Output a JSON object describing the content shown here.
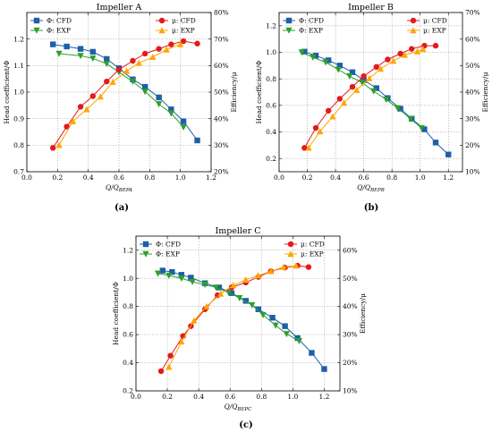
{
  "chart_data": [
    {
      "type": "line",
      "title": "Impeller A",
      "caption": "(a)",
      "xlabel": "Q/Q_BEPA",
      "xlabel_main": "Q/Q",
      "xlabel_sub": "BEPA",
      "ylabel_left": "Head coefficient/Φ",
      "ylabel_right": "Efficiency/μ",
      "xlim": [
        0.0,
        1.2
      ],
      "ylim_left": [
        0.7,
        1.3
      ],
      "ylim_right": [
        20,
        80
      ],
      "xticks": [
        "0.0",
        "0.2",
        "0.4",
        "0.6",
        "0.8",
        "1.0",
        "1.2"
      ],
      "yticks_left": [
        "0.7",
        "0.8",
        "0.9",
        "1.0",
        "1.1",
        "1.2"
      ],
      "yticks_right": [
        "20%",
        "30%",
        "40%",
        "50%",
        "60%",
        "70%",
        "80%"
      ],
      "grid": true,
      "series": [
        {
          "name": "Φ: CFD",
          "axis": "left",
          "color": "#1f5fa8",
          "marker": "square",
          "x": [
            0.17,
            0.26,
            0.35,
            0.43,
            0.52,
            0.6,
            0.69,
            0.77,
            0.86,
            0.94,
            1.02,
            1.11
          ],
          "y": [
            1.18,
            1.172,
            1.163,
            1.152,
            1.125,
            1.09,
            1.048,
            1.02,
            0.98,
            0.935,
            0.89,
            0.818
          ]
        },
        {
          "name": "Φ: EXP",
          "axis": "left",
          "color": "#2ca02c",
          "marker": "triangle-down",
          "x": [
            0.21,
            0.35,
            0.43,
            0.52,
            0.6,
            0.69,
            0.77,
            0.86,
            0.94,
            1.02
          ],
          "y": [
            1.145,
            1.137,
            1.127,
            1.107,
            1.075,
            1.04,
            1.002,
            0.955,
            0.92,
            0.868
          ]
        },
        {
          "name": "μ: CFD",
          "axis": "right",
          "color": "#e31a1c",
          "marker": "circle",
          "x": [
            0.17,
            0.26,
            0.35,
            0.43,
            0.52,
            0.6,
            0.69,
            0.77,
            0.86,
            0.94,
            1.02,
            1.11
          ],
          "y": [
            29,
            37,
            44.5,
            48.5,
            54,
            58.5,
            61.8,
            64.5,
            66.3,
            68,
            69.2,
            68.3
          ]
        },
        {
          "name": "μ: EXP",
          "axis": "right",
          "color": "#ffa500",
          "marker": "triangle-up",
          "x": [
            0.21,
            0.3,
            0.39,
            0.48,
            0.56,
            0.65,
            0.73,
            0.82,
            0.91,
            1.0
          ],
          "y": [
            30,
            39,
            43.5,
            48.3,
            53.8,
            58,
            61,
            63.2,
            66,
            68
          ]
        }
      ]
    },
    {
      "type": "line",
      "title": "Impeller B",
      "caption": "(b)",
      "xlabel": "Q/Q_BEPB",
      "xlabel_main": "Q/Q",
      "xlabel_sub": "BEPB",
      "ylabel_left": "Head coefficient/Φ",
      "ylabel_right": "Efficiency/μ",
      "xlim": [
        0.0,
        1.3
      ],
      "ylim_left": [
        0.1,
        1.3
      ],
      "ylim_right": [
        10,
        70
      ],
      "xticks": [
        "0.0",
        "0.2",
        "0.4",
        "0.6",
        "0.8",
        "1.0",
        "1.2"
      ],
      "yticks_left": [
        "0.2",
        "0.4",
        "0.6",
        "0.8",
        "1.0",
        "1.2"
      ],
      "yticks_right": [
        "10%",
        "20%",
        "30%",
        "40%",
        "50%",
        "60%",
        "70%"
      ],
      "grid": true,
      "series": [
        {
          "name": "Φ: CFD",
          "axis": "left",
          "color": "#1f5fa8",
          "marker": "square",
          "x": [
            0.18,
            0.26,
            0.35,
            0.43,
            0.52,
            0.6,
            0.69,
            0.77,
            0.86,
            0.94,
            1.03,
            1.11,
            1.2
          ],
          "y": [
            1.005,
            0.975,
            0.94,
            0.9,
            0.85,
            0.79,
            0.73,
            0.655,
            0.575,
            0.5,
            0.42,
            0.32,
            0.23
          ]
        },
        {
          "name": "Φ: EXP",
          "axis": "left",
          "color": "#2ca02c",
          "marker": "triangle-down",
          "x": [
            0.16,
            0.24,
            0.33,
            0.42,
            0.5,
            0.59,
            0.67,
            0.76,
            0.84,
            0.93,
            1.01
          ],
          "y": [
            1.0,
            0.962,
            0.925,
            0.87,
            0.82,
            0.77,
            0.707,
            0.645,
            0.58,
            0.5,
            0.43
          ]
        },
        {
          "name": "μ: CFD",
          "axis": "right",
          "color": "#e31a1c",
          "marker": "circle",
          "x": [
            0.18,
            0.26,
            0.35,
            0.43,
            0.52,
            0.6,
            0.69,
            0.77,
            0.86,
            0.94,
            1.03,
            1.11
          ],
          "y": [
            19,
            26.5,
            33,
            37.5,
            42,
            46,
            49.5,
            52.3,
            54.5,
            56.3,
            57.5,
            57.5
          ]
        },
        {
          "name": "μ: EXP",
          "axis": "right",
          "color": "#ffa500",
          "marker": "triangle-up",
          "x": [
            0.21,
            0.29,
            0.38,
            0.46,
            0.55,
            0.64,
            0.72,
            0.81,
            0.89,
            0.98,
            1.02
          ],
          "y": [
            19,
            25.2,
            30.8,
            36,
            40.8,
            45.2,
            48.8,
            51.8,
            54,
            55.3,
            56.2
          ]
        }
      ]
    },
    {
      "type": "line",
      "title": "Impeller C",
      "caption": "(c)",
      "xlabel": "Q/Q_BEPC",
      "xlabel_main": "Q/Q",
      "xlabel_sub": "BEPC",
      "ylabel_left": "Head coefficient/Φ",
      "ylabel_right": "Efficiency/μ",
      "xlim": [
        0.0,
        1.3
      ],
      "ylim_left": [
        0.2,
        1.3
      ],
      "ylim_right": [
        10,
        65
      ],
      "xticks": [
        "0.0",
        "0.2",
        "0.4",
        "0.6",
        "0.8",
        "1.0",
        "1.2"
      ],
      "yticks_left": [
        "0.2",
        "0.4",
        "0.6",
        "0.8",
        "1.0",
        "1.2"
      ],
      "yticks_right": [
        "10%",
        "20%",
        "30%",
        "40%",
        "50%",
        "60%"
      ],
      "grid": true,
      "series": [
        {
          "name": "Φ: CFD",
          "axis": "left",
          "color": "#1f5fa8",
          "marker": "square",
          "x": [
            0.17,
            0.23,
            0.29,
            0.35,
            0.44,
            0.53,
            0.61,
            0.7,
            0.78,
            0.87,
            0.95,
            1.03,
            1.12,
            1.2
          ],
          "y": [
            1.055,
            1.045,
            1.025,
            1.005,
            0.965,
            0.935,
            0.895,
            0.84,
            0.78,
            0.72,
            0.66,
            0.575,
            0.47,
            0.355
          ]
        },
        {
          "name": "Φ: EXP",
          "axis": "left",
          "color": "#2ca02c",
          "marker": "triangle-down",
          "x": [
            0.14,
            0.21,
            0.29,
            0.36,
            0.44,
            0.51,
            0.59,
            0.66,
            0.74,
            0.81,
            0.89,
            0.96,
            1.04
          ],
          "y": [
            1.035,
            1.02,
            1.0,
            0.975,
            0.955,
            0.935,
            0.9,
            0.86,
            0.81,
            0.74,
            0.665,
            0.605,
            0.555
          ]
        },
        {
          "name": "μ: CFD",
          "axis": "right",
          "color": "#e31a1c",
          "marker": "circle",
          "x": [
            0.16,
            0.22,
            0.3,
            0.35,
            0.44,
            0.52,
            0.61,
            0.7,
            0.78,
            0.86,
            0.95,
            1.03,
            1.1
          ],
          "y": [
            17,
            22.5,
            29.5,
            33,
            39,
            44,
            46.8,
            48.5,
            50.5,
            52.5,
            53.8,
            54.5,
            54
          ]
        },
        {
          "name": "μ: EXP",
          "axis": "right",
          "color": "#ffa500",
          "marker": "triangle-up",
          "x": [
            0.21,
            0.29,
            0.37,
            0.45,
            0.54,
            0.62,
            0.7,
            0.78,
            0.86,
            0.94,
            1.02
          ],
          "y": [
            18.5,
            27.5,
            35,
            40,
            44.5,
            47.5,
            49.5,
            51,
            52.5,
            54,
            54.5
          ]
        }
      ]
    }
  ]
}
